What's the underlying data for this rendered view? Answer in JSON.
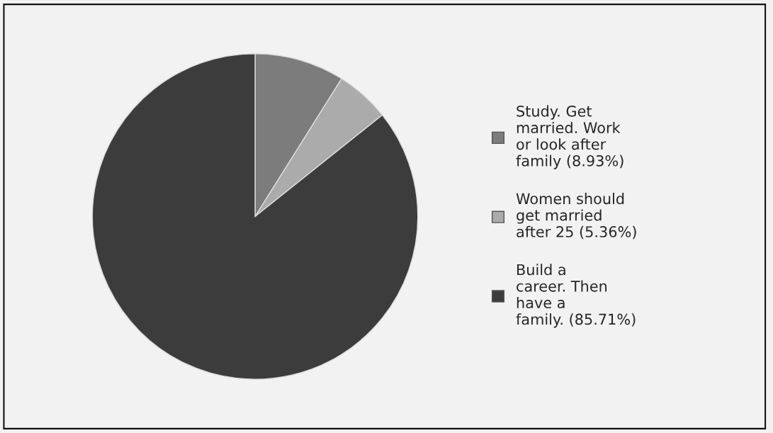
{
  "chart_data": {
    "type": "pie",
    "categories": [
      "Study. Get\nmarried. Work\nor look after\nfamily (8.93%)",
      "Women should\nget married\nafter 25 (5.36%)",
      "Build a\ncareer. Then\nhave a\nfamily. (85.71%)"
    ],
    "values": [
      8.93,
      5.36,
      85.71
    ],
    "colors": [
      "#7c7c7c",
      "#ababab",
      "#3c3c3c"
    ],
    "legend": "right"
  }
}
